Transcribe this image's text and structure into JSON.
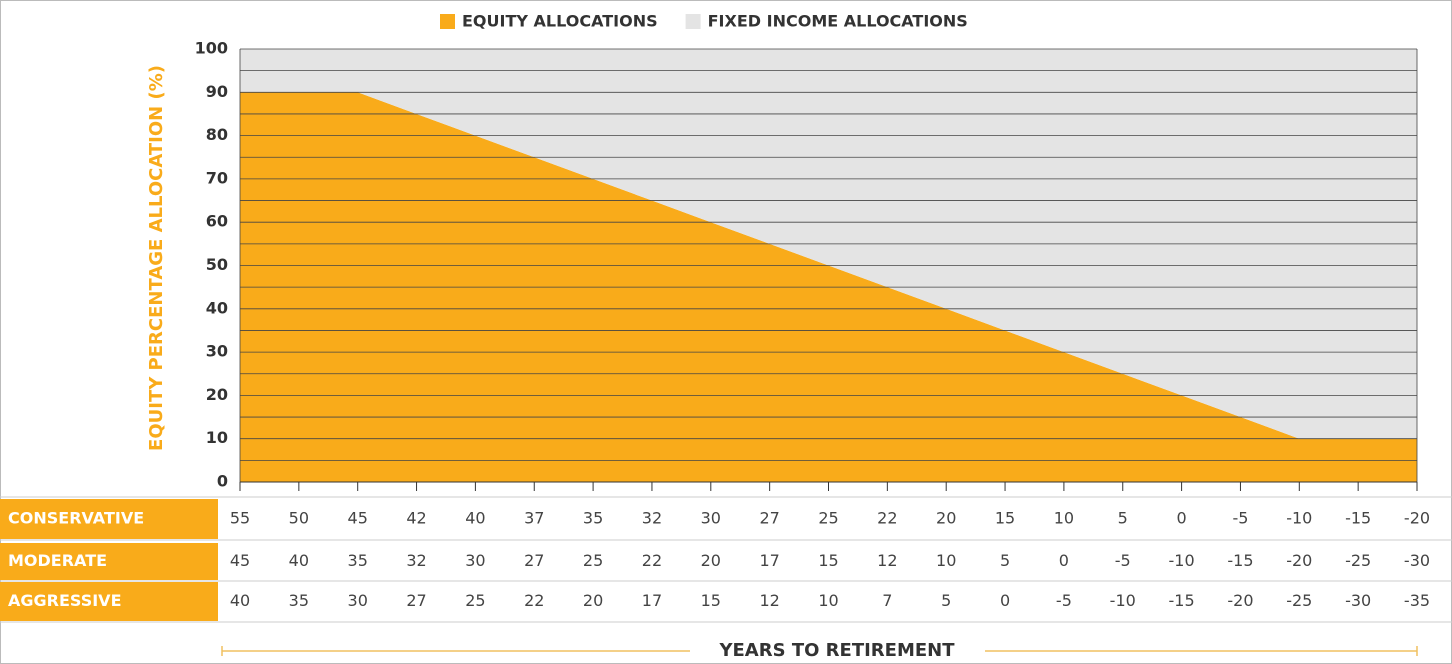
{
  "chart_data": {
    "type": "area",
    "stacked": true,
    "y_label": "EQUITY PERCENTAGE ALLOCATION (%)",
    "x_label": "YEARS TO RETIREMENT",
    "series": [
      {
        "name": "EQUITY ALLOCATIONS",
        "color": "#f9ab1a",
        "values": [
          90,
          90,
          90,
          85,
          80,
          75,
          70,
          65,
          60,
          55,
          50,
          45,
          40,
          35,
          30,
          25,
          20,
          15,
          10,
          10,
          10
        ]
      },
      {
        "name": "FIXED INCOME ALLOCATIONS",
        "color": "#e4e4e4",
        "values": [
          10,
          10,
          10,
          15,
          20,
          25,
          30,
          35,
          40,
          45,
          50,
          55,
          60,
          65,
          70,
          75,
          80,
          85,
          90,
          90,
          90
        ]
      }
    ],
    "ylim": [
      0,
      100
    ],
    "yticks": [
      0,
      10,
      20,
      30,
      40,
      50,
      60,
      70,
      80,
      90,
      100
    ],
    "minor_yticks": [
      5,
      15,
      25,
      35,
      45,
      55,
      65,
      75,
      85,
      95
    ],
    "grid": true,
    "legend": "top",
    "table": {
      "rows": [
        {
          "name": "CONSERVATIVE",
          "values": [
            55,
            50,
            45,
            42,
            40,
            37,
            35,
            32,
            30,
            27,
            25,
            22,
            20,
            15,
            10,
            5,
            0,
            -5,
            -10,
            -15,
            -20
          ]
        },
        {
          "name": "MODERATE",
          "values": [
            45,
            40,
            35,
            32,
            30,
            27,
            25,
            22,
            20,
            17,
            15,
            12,
            10,
            5,
            0,
            -5,
            -10,
            -15,
            -20,
            -25,
            -30
          ]
        },
        {
          "name": "AGGRESSIVE",
          "values": [
            40,
            35,
            30,
            27,
            25,
            22,
            20,
            17,
            15,
            12,
            10,
            7,
            5,
            0,
            -5,
            -10,
            -15,
            -20,
            -25,
            -30,
            -35
          ]
        }
      ]
    }
  }
}
